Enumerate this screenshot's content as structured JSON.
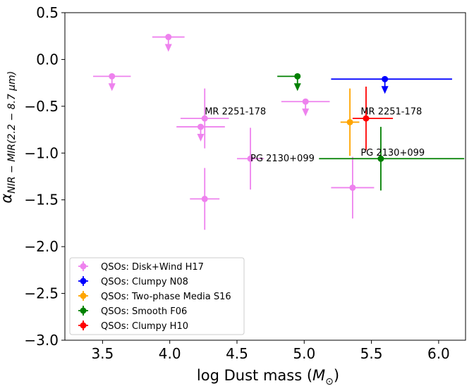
{
  "chart_data": {
    "type": "scatter",
    "title": "",
    "xlabel_main": "log Dust mass (",
    "xlabel_symbol": "M",
    "xlabel_sub": "⊙",
    "xlabel_tail": ")",
    "ylabel_main": "α",
    "ylabel_sub": "NIR − MIR(2.2 − 8.7 μm)",
    "xlim": [
      3.22,
      6.2
    ],
    "ylim": [
      -3.0,
      0.5
    ],
    "xticks": [
      3.5,
      4.0,
      4.5,
      5.0,
      5.5,
      6.0
    ],
    "yticks": [
      0.5,
      0.0,
      -0.5,
      -1.0,
      -1.5,
      -2.0,
      -2.5,
      -3.0
    ],
    "xtick_labels": [
      "3.5",
      "4.0",
      "4.5",
      "5.0",
      "5.5",
      "6.0"
    ],
    "ytick_labels": [
      "0.5",
      "0.0",
      "−0.5",
      "−1.0",
      "−1.5",
      "−2.0",
      "−2.5",
      "−3.0"
    ],
    "legend_position": "lower-left",
    "series": [
      {
        "name": "QSOs: Disk+Wind H17",
        "color": "#ee82ee",
        "points": [
          {
            "x": 3.57,
            "y": -0.18,
            "xerr": 0.14,
            "yerr": 0,
            "upper_limit": true
          },
          {
            "x": 3.99,
            "y": 0.24,
            "xerr": 0.12,
            "yerr": 0,
            "upper_limit": true
          },
          {
            "x": 4.26,
            "y": -0.63,
            "xerr": 0.18,
            "yerr": 0.32,
            "upper_limit": false
          },
          {
            "x": 4.23,
            "y": -0.72,
            "xerr": 0.18,
            "yerr": 0,
            "upper_limit": true
          },
          {
            "x": 4.26,
            "y": -1.49,
            "xerr": 0.11,
            "yerr": 0.33,
            "upper_limit": false
          },
          {
            "x": 4.6,
            "y": -1.06,
            "xerr": 0.1,
            "yerr": 0.33,
            "upper_limit": false
          },
          {
            "x": 5.01,
            "y": -0.45,
            "xerr": 0.18,
            "yerr": 0,
            "upper_limit": true
          },
          {
            "x": 5.36,
            "y": -1.37,
            "xerr": 0.16,
            "yerr": 0.33,
            "upper_limit": false
          }
        ]
      },
      {
        "name": "QSOs: Clumpy N08",
        "color": "#0000ff",
        "points": [
          {
            "x": 5.6,
            "y": -0.21,
            "xerr_low": 0.4,
            "xerr_high": 0.5,
            "yerr": 0,
            "upper_limit": true
          }
        ]
      },
      {
        "name": "QSOs: Two-phase Media S16",
        "color": "#ffa500",
        "points": [
          {
            "x": 5.34,
            "y": -0.67,
            "xerr": 0.07,
            "yerr": 0.36,
            "upper_limit": false
          }
        ]
      },
      {
        "name": "QSOs: Smooth F06",
        "color": "#008000",
        "points": [
          {
            "x": 4.95,
            "y": -0.18,
            "xerr_low": 0.15,
            "xerr_high": 0,
            "yerr": 0,
            "upper_limit": true
          },
          {
            "x": 5.57,
            "y": -1.06,
            "xerr_low": 0.46,
            "xerr_high": 0.62,
            "yerr": 0.34,
            "upper_limit": false
          }
        ]
      },
      {
        "name": "QSOs: Clumpy H10",
        "color": "#ff0000",
        "points": [
          {
            "x": 5.46,
            "y": -0.63,
            "xerr_low": 0.1,
            "xerr_high": 0.2,
            "yerr": 0.34,
            "upper_limit": false
          }
        ]
      }
    ],
    "annotations": [
      {
        "text": "MR 2251-178",
        "x": 4.26,
        "y": -0.55
      },
      {
        "text": "PG 2130+099",
        "x": 4.6,
        "y": -1.05
      },
      {
        "text": "MR 2251-178",
        "x": 5.42,
        "y": -0.55
      },
      {
        "text": "PG 2130+099",
        "x": 5.42,
        "y": -0.99
      }
    ]
  }
}
